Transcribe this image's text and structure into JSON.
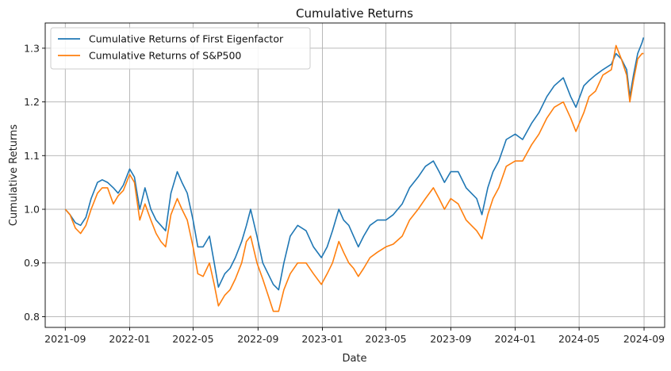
{
  "chart_data": {
    "type": "line",
    "title": "Cumulative Returns",
    "xlabel": "Date",
    "ylabel": "Cumulative Returns",
    "x_range": [
      "2021-07-25",
      "2024-10-10"
    ],
    "ylim": [
      0.78,
      1.347
    ],
    "x_ticks": [
      "2021-09",
      "2022-01",
      "2022-05",
      "2022-09",
      "2023-01",
      "2023-05",
      "2023-09",
      "2024-01",
      "2024-05",
      "2024-09"
    ],
    "y_ticks": [
      0.8,
      0.9,
      1.0,
      1.1,
      1.2,
      1.3
    ],
    "grid": true,
    "legend_position": "top-left",
    "series": [
      {
        "name": "Cumulative Returns of First Eigenfactor",
        "color": "#1f77b4",
        "points": [
          [
            "2021-09-01",
            1.0
          ],
          [
            "2021-09-10",
            0.99
          ],
          [
            "2021-09-20",
            0.975
          ],
          [
            "2021-09-30",
            0.97
          ],
          [
            "2021-10-10",
            0.985
          ],
          [
            "2021-10-20",
            1.02
          ],
          [
            "2021-11-01",
            1.05
          ],
          [
            "2021-11-10",
            1.055
          ],
          [
            "2021-11-20",
            1.05
          ],
          [
            "2021-12-01",
            1.04
          ],
          [
            "2021-12-10",
            1.03
          ],
          [
            "2021-12-20",
            1.045
          ],
          [
            "2022-01-01",
            1.075
          ],
          [
            "2022-01-10",
            1.06
          ],
          [
            "2022-01-20",
            1.0
          ],
          [
            "2022-01-30",
            1.04
          ],
          [
            "2022-02-10",
            1.0
          ],
          [
            "2022-02-20",
            0.98
          ],
          [
            "2022-03-01",
            0.97
          ],
          [
            "2022-03-10",
            0.96
          ],
          [
            "2022-03-20",
            1.03
          ],
          [
            "2022-04-01",
            1.07
          ],
          [
            "2022-04-10",
            1.05
          ],
          [
            "2022-04-20",
            1.03
          ],
          [
            "2022-05-01",
            0.98
          ],
          [
            "2022-05-10",
            0.93
          ],
          [
            "2022-05-20",
            0.93
          ],
          [
            "2022-06-01",
            0.95
          ],
          [
            "2022-06-10",
            0.9
          ],
          [
            "2022-06-18",
            0.855
          ],
          [
            "2022-06-30",
            0.88
          ],
          [
            "2022-07-10",
            0.89
          ],
          [
            "2022-07-20",
            0.91
          ],
          [
            "2022-08-01",
            0.94
          ],
          [
            "2022-08-10",
            0.97
          ],
          [
            "2022-08-18",
            1.0
          ],
          [
            "2022-08-30",
            0.95
          ],
          [
            "2022-09-10",
            0.9
          ],
          [
            "2022-09-20",
            0.88
          ],
          [
            "2022-09-30",
            0.86
          ],
          [
            "2022-10-10",
            0.85
          ],
          [
            "2022-10-20",
            0.9
          ],
          [
            "2022-11-01",
            0.95
          ],
          [
            "2022-11-15",
            0.97
          ],
          [
            "2022-12-01",
            0.96
          ],
          [
            "2022-12-15",
            0.93
          ],
          [
            "2022-12-30",
            0.91
          ],
          [
            "2023-01-10",
            0.93
          ],
          [
            "2023-01-20",
            0.96
          ],
          [
            "2023-02-01",
            1.0
          ],
          [
            "2023-02-10",
            0.98
          ],
          [
            "2023-02-20",
            0.97
          ],
          [
            "2023-03-01",
            0.95
          ],
          [
            "2023-03-10",
            0.93
          ],
          [
            "2023-03-20",
            0.95
          ],
          [
            "2023-04-01",
            0.97
          ],
          [
            "2023-04-15",
            0.98
          ],
          [
            "2023-05-01",
            0.98
          ],
          [
            "2023-05-15",
            0.99
          ],
          [
            "2023-06-01",
            1.01
          ],
          [
            "2023-06-15",
            1.04
          ],
          [
            "2023-07-01",
            1.06
          ],
          [
            "2023-07-15",
            1.08
          ],
          [
            "2023-07-30",
            1.09
          ],
          [
            "2023-08-10",
            1.07
          ],
          [
            "2023-08-20",
            1.05
          ],
          [
            "2023-09-01",
            1.07
          ],
          [
            "2023-09-15",
            1.07
          ],
          [
            "2023-09-30",
            1.04
          ],
          [
            "2023-10-10",
            1.03
          ],
          [
            "2023-10-20",
            1.02
          ],
          [
            "2023-10-30",
            0.99
          ],
          [
            "2023-11-10",
            1.04
          ],
          [
            "2023-11-20",
            1.07
          ],
          [
            "2023-12-01",
            1.09
          ],
          [
            "2023-12-15",
            1.13
          ],
          [
            "2024-01-01",
            1.14
          ],
          [
            "2024-01-15",
            1.13
          ],
          [
            "2024-02-01",
            1.16
          ],
          [
            "2024-02-15",
            1.18
          ],
          [
            "2024-03-01",
            1.21
          ],
          [
            "2024-03-15",
            1.23
          ],
          [
            "2024-04-01",
            1.245
          ],
          [
            "2024-04-15",
            1.21
          ],
          [
            "2024-04-25",
            1.19
          ],
          [
            "2024-05-10",
            1.23
          ],
          [
            "2024-05-20",
            1.24
          ],
          [
            "2024-06-01",
            1.25
          ],
          [
            "2024-06-15",
            1.26
          ],
          [
            "2024-07-01",
            1.27
          ],
          [
            "2024-07-10",
            1.29
          ],
          [
            "2024-07-20",
            1.28
          ],
          [
            "2024-07-30",
            1.26
          ],
          [
            "2024-08-05",
            1.21
          ],
          [
            "2024-08-12",
            1.25
          ],
          [
            "2024-08-20",
            1.29
          ],
          [
            "2024-08-28",
            1.31
          ],
          [
            "2024-08-31",
            1.32
          ]
        ]
      },
      {
        "name": "Cumulative Returns of S&P500",
        "color": "#ff7f0e",
        "points": [
          [
            "2021-09-01",
            1.0
          ],
          [
            "2021-09-10",
            0.99
          ],
          [
            "2021-09-20",
            0.965
          ],
          [
            "2021-09-30",
            0.955
          ],
          [
            "2021-10-10",
            0.97
          ],
          [
            "2021-10-20",
            1.0
          ],
          [
            "2021-11-01",
            1.03
          ],
          [
            "2021-11-10",
            1.04
          ],
          [
            "2021-11-20",
            1.04
          ],
          [
            "2021-12-01",
            1.01
          ],
          [
            "2021-12-10",
            1.025
          ],
          [
            "2021-12-20",
            1.035
          ],
          [
            "2022-01-01",
            1.065
          ],
          [
            "2022-01-10",
            1.05
          ],
          [
            "2022-01-20",
            0.98
          ],
          [
            "2022-01-30",
            1.01
          ],
          [
            "2022-02-10",
            0.98
          ],
          [
            "2022-02-20",
            0.955
          ],
          [
            "2022-03-01",
            0.94
          ],
          [
            "2022-03-10",
            0.93
          ],
          [
            "2022-03-20",
            0.99
          ],
          [
            "2022-04-01",
            1.02
          ],
          [
            "2022-04-10",
            1.0
          ],
          [
            "2022-04-20",
            0.98
          ],
          [
            "2022-05-01",
            0.93
          ],
          [
            "2022-05-10",
            0.88
          ],
          [
            "2022-05-20",
            0.875
          ],
          [
            "2022-06-01",
            0.9
          ],
          [
            "2022-06-10",
            0.86
          ],
          [
            "2022-06-18",
            0.82
          ],
          [
            "2022-06-30",
            0.84
          ],
          [
            "2022-07-10",
            0.85
          ],
          [
            "2022-07-20",
            0.87
          ],
          [
            "2022-08-01",
            0.9
          ],
          [
            "2022-08-10",
            0.94
          ],
          [
            "2022-08-18",
            0.95
          ],
          [
            "2022-08-30",
            0.9
          ],
          [
            "2022-09-10",
            0.87
          ],
          [
            "2022-09-20",
            0.84
          ],
          [
            "2022-09-30",
            0.81
          ],
          [
            "2022-10-10",
            0.81
          ],
          [
            "2022-10-20",
            0.85
          ],
          [
            "2022-11-01",
            0.88
          ],
          [
            "2022-11-15",
            0.9
          ],
          [
            "2022-12-01",
            0.9
          ],
          [
            "2022-12-15",
            0.88
          ],
          [
            "2022-12-30",
            0.86
          ],
          [
            "2023-01-10",
            0.88
          ],
          [
            "2023-01-20",
            0.9
          ],
          [
            "2023-02-01",
            0.94
          ],
          [
            "2023-02-10",
            0.92
          ],
          [
            "2023-02-20",
            0.9
          ],
          [
            "2023-03-01",
            0.89
          ],
          [
            "2023-03-10",
            0.875
          ],
          [
            "2023-03-20",
            0.89
          ],
          [
            "2023-04-01",
            0.91
          ],
          [
            "2023-04-15",
            0.92
          ],
          [
            "2023-05-01",
            0.93
          ],
          [
            "2023-05-15",
            0.935
          ],
          [
            "2023-06-01",
            0.95
          ],
          [
            "2023-06-15",
            0.98
          ],
          [
            "2023-07-01",
            1.0
          ],
          [
            "2023-07-15",
            1.02
          ],
          [
            "2023-07-30",
            1.04
          ],
          [
            "2023-08-10",
            1.02
          ],
          [
            "2023-08-20",
            1.0
          ],
          [
            "2023-09-01",
            1.02
          ],
          [
            "2023-09-15",
            1.01
          ],
          [
            "2023-09-30",
            0.98
          ],
          [
            "2023-10-10",
            0.97
          ],
          [
            "2023-10-20",
            0.96
          ],
          [
            "2023-10-30",
            0.945
          ],
          [
            "2023-11-10",
            0.99
          ],
          [
            "2023-11-20",
            1.02
          ],
          [
            "2023-12-01",
            1.04
          ],
          [
            "2023-12-15",
            1.08
          ],
          [
            "2024-01-01",
            1.09
          ],
          [
            "2024-01-15",
            1.09
          ],
          [
            "2024-02-01",
            1.12
          ],
          [
            "2024-02-15",
            1.14
          ],
          [
            "2024-03-01",
            1.17
          ],
          [
            "2024-03-15",
            1.19
          ],
          [
            "2024-04-01",
            1.2
          ],
          [
            "2024-04-15",
            1.17
          ],
          [
            "2024-04-25",
            1.145
          ],
          [
            "2024-05-10",
            1.18
          ],
          [
            "2024-05-20",
            1.21
          ],
          [
            "2024-06-01",
            1.22
          ],
          [
            "2024-06-15",
            1.25
          ],
          [
            "2024-07-01",
            1.26
          ],
          [
            "2024-07-10",
            1.305
          ],
          [
            "2024-07-20",
            1.28
          ],
          [
            "2024-07-30",
            1.25
          ],
          [
            "2024-08-05",
            1.2
          ],
          [
            "2024-08-12",
            1.24
          ],
          [
            "2024-08-20",
            1.28
          ],
          [
            "2024-08-28",
            1.29
          ],
          [
            "2024-08-31",
            1.29
          ]
        ]
      }
    ]
  }
}
